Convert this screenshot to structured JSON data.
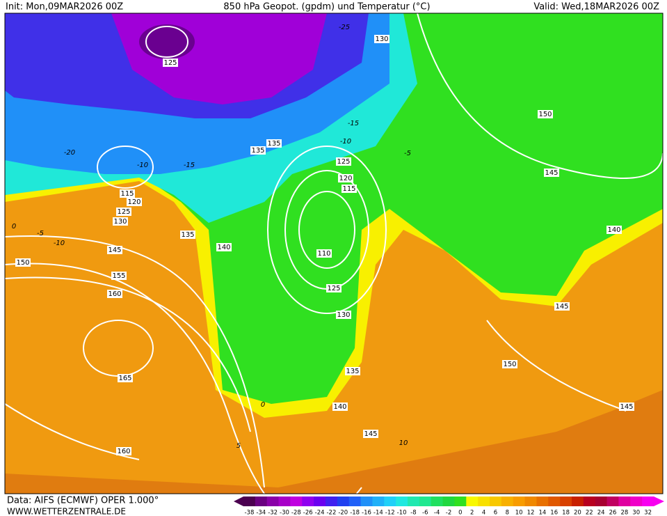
{
  "header": {
    "init": "Init: Mon,09MAR2026 00Z",
    "title": "850 hPa Geopot. (gpdm) und Temperatur (°C)",
    "valid": "Valid: Wed,18MAR2026 00Z"
  },
  "footer": {
    "source": "Data: AIFS (ECMWF) OPER 1.000°",
    "url": "WWW.WETTERZENTRALE.DE"
  },
  "scale": {
    "labels": [
      "-38",
      "-34",
      "-32",
      "-30",
      "-28",
      "-26",
      "-24",
      "-22",
      "-20",
      "-18",
      "-16",
      "-14",
      "-12",
      "-10",
      "-8",
      "-6",
      "-4",
      "-2",
      "0",
      "2",
      "4",
      "6",
      "8",
      "10",
      "12",
      "14",
      "16",
      "18",
      "20",
      "22",
      "24",
      "26",
      "28",
      "30",
      "32"
    ],
    "colors": [
      "#4b0050",
      "#6a0080",
      "#8a00a8",
      "#a800c8",
      "#c000e0",
      "#9000f0",
      "#6a00f0",
      "#4020f0",
      "#2040f0",
      "#2060f8",
      "#2090f8",
      "#20b0f8",
      "#20d0f8",
      "#20e8e0",
      "#20e8b0",
      "#20e890",
      "#20e060",
      "#20d840",
      "#30e020",
      "#f8f800",
      "#f8e000",
      "#f8c800",
      "#f8b000",
      "#f89c00",
      "#f08800",
      "#e87000",
      "#e05800",
      "#d84000",
      "#c82000",
      "#b80020",
      "#a80030",
      "#c00060",
      "#e000a0",
      "#f000c8",
      "#f800f0"
    ]
  },
  "map": {
    "isohypse_labels": [
      "125",
      "130",
      "150",
      "145",
      "135",
      "135",
      "125",
      "120",
      "115",
      "115",
      "120",
      "125",
      "130",
      "135",
      "140",
      "145",
      "150",
      "155",
      "160",
      "110",
      "125",
      "130",
      "140",
      "145",
      "150",
      "135",
      "140",
      "145",
      "145",
      "165",
      "160"
    ],
    "isotherm_labels": [
      "-25",
      "-15",
      "-10",
      "-5",
      "-15",
      "-20",
      "-10",
      "0",
      "-5",
      "-10",
      "0",
      "5",
      "10"
    ]
  }
}
